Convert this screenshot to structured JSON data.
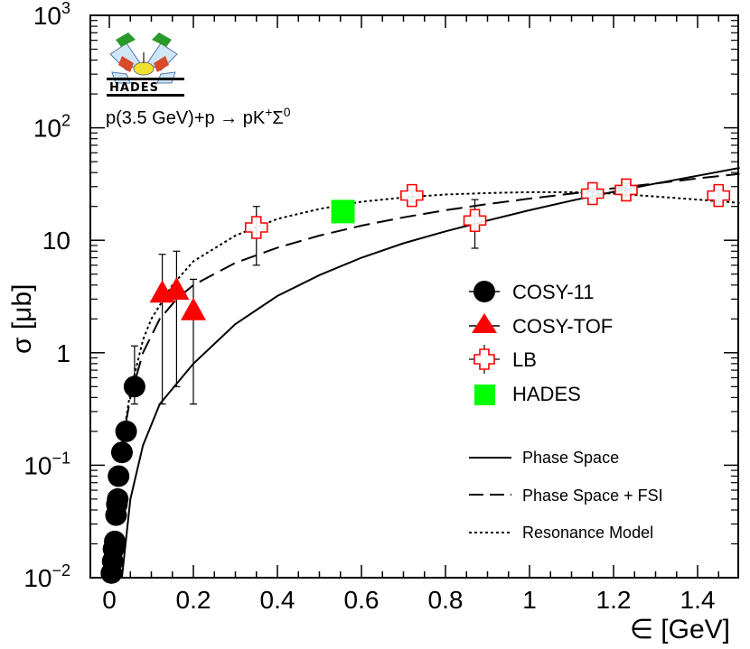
{
  "chart_data": {
    "type": "scatter",
    "title": "",
    "xlabel": "∈ [GeV]",
    "ylabel": "σ [μb]",
    "xlim": [
      -0.02,
      1.5
    ],
    "ylim": [
      0.01,
      1000
    ],
    "yscale": "log",
    "x_ticks": [
      {
        "v": 0,
        "label": "0"
      },
      {
        "v": 0.2,
        "label": "0.2"
      },
      {
        "v": 0.4,
        "label": "0.4"
      },
      {
        "v": 0.6,
        "label": "0.6"
      },
      {
        "v": 0.8,
        "label": "0.8"
      },
      {
        "v": 1.0,
        "label": "1"
      },
      {
        "v": 1.2,
        "label": "1.2"
      },
      {
        "v": 1.4,
        "label": "1.4"
      }
    ],
    "y_ticks": [
      {
        "v": 0.01,
        "base": "10",
        "exp": "−2"
      },
      {
        "v": 0.1,
        "base": "10",
        "exp": "−1"
      },
      {
        "v": 1,
        "base": "1",
        "exp": ""
      },
      {
        "v": 10,
        "base": "10",
        "exp": ""
      },
      {
        "v": 100,
        "base": "10",
        "exp": "2"
      },
      {
        "v": 1000,
        "base": "10",
        "exp": "3"
      }
    ],
    "reaction": {
      "pre": "p(3.5 GeV)+p → pK",
      "sup1": "+",
      "mid": "Σ",
      "sup2": "0"
    },
    "logo_text": "HADES",
    "legend": {
      "markers": [
        {
          "name": "COSY-11",
          "marker": "circle",
          "color": "#000000"
        },
        {
          "name": "COSY-TOF",
          "marker": "triangle",
          "color": "#ff0000"
        },
        {
          "name": "LB",
          "marker": "open-cross",
          "color": "#ff0000"
        },
        {
          "name": "HADES",
          "marker": "square",
          "color": "#00ff00"
        }
      ],
      "lines": [
        {
          "name": "Phase Space",
          "dash": "solid"
        },
        {
          "name": "Phase Space + FSI",
          "dash": "long-dash"
        },
        {
          "name": "Resonance Model",
          "dash": "dotted"
        }
      ]
    },
    "series": [
      {
        "name": "COSY-11",
        "points": [
          {
            "x": 0.005,
            "y": 0.011
          },
          {
            "x": 0.008,
            "y": 0.014
          },
          {
            "x": 0.01,
            "y": 0.018
          },
          {
            "x": 0.013,
            "y": 0.021
          },
          {
            "x": 0.016,
            "y": 0.036
          },
          {
            "x": 0.018,
            "y": 0.045
          },
          {
            "x": 0.02,
            "y": 0.05
          },
          {
            "x": 0.022,
            "y": 0.08
          },
          {
            "x": 0.03,
            "y": 0.13
          },
          {
            "x": 0.04,
            "y": 0.2
          },
          {
            "x": 0.06,
            "y": 0.5,
            "err_lo": 0.35,
            "err_hi": 1.15
          }
        ]
      },
      {
        "name": "COSY-TOF",
        "points": [
          {
            "x": 0.126,
            "y": 3.3,
            "err_lo": 0.35,
            "err_hi": 7.5
          },
          {
            "x": 0.16,
            "y": 3.5,
            "err_lo": 0.5,
            "err_hi": 8.0
          },
          {
            "x": 0.2,
            "y": 2.3,
            "err_lo": 0.35,
            "err_hi": 4.5
          }
        ]
      },
      {
        "name": "LB",
        "points": [
          {
            "x": 0.35,
            "y": 13,
            "err_lo": 6.0,
            "err_hi": 20
          },
          {
            "x": 0.72,
            "y": 25,
            "err_lo": 22,
            "err_hi": 28
          },
          {
            "x": 0.87,
            "y": 15,
            "err_lo": 8.5,
            "err_hi": 23
          },
          {
            "x": 1.15,
            "y": 26,
            "err_lo": 23,
            "err_hi": 29
          },
          {
            "x": 1.23,
            "y": 28,
            "err_lo": 25,
            "err_hi": 32
          },
          {
            "x": 1.45,
            "y": 25,
            "err_lo": 22,
            "err_hi": 28
          }
        ]
      },
      {
        "name": "HADES",
        "points": [
          {
            "x": 0.556,
            "y": 18
          }
        ]
      }
    ],
    "curves": [
      {
        "name": "Phase Space",
        "dash": "solid",
        "points": [
          [
            0.03,
            0.01
          ],
          [
            0.05,
            0.05
          ],
          [
            0.08,
            0.15
          ],
          [
            0.12,
            0.35
          ],
          [
            0.2,
            0.8
          ],
          [
            0.3,
            1.8
          ],
          [
            0.4,
            3.2
          ],
          [
            0.5,
            4.9
          ],
          [
            0.6,
            7.0
          ],
          [
            0.7,
            9.4
          ],
          [
            0.8,
            12.0
          ],
          [
            0.9,
            15.0
          ],
          [
            1.0,
            18.5
          ],
          [
            1.1,
            22.5
          ],
          [
            1.2,
            27.0
          ],
          [
            1.3,
            32.0
          ],
          [
            1.4,
            37.5
          ],
          [
            1.5,
            44.0
          ]
        ]
      },
      {
        "name": "Phase Space + FSI",
        "dash": "long-dash",
        "points": [
          [
            0.03,
            0.15
          ],
          [
            0.05,
            0.4
          ],
          [
            0.08,
            1.0
          ],
          [
            0.12,
            2.0
          ],
          [
            0.16,
            3.0
          ],
          [
            0.2,
            4.0
          ],
          [
            0.3,
            6.3
          ],
          [
            0.4,
            8.6
          ],
          [
            0.5,
            11.0
          ],
          [
            0.6,
            13.5
          ],
          [
            0.7,
            16.0
          ],
          [
            0.8,
            18.5
          ],
          [
            0.9,
            21.0
          ],
          [
            1.0,
            23.5
          ],
          [
            1.1,
            26.0
          ],
          [
            1.2,
            29.0
          ],
          [
            1.3,
            32.0
          ],
          [
            1.4,
            35.5
          ],
          [
            1.5,
            39.0
          ]
        ]
      },
      {
        "name": "Resonance Model",
        "dash": "dotted",
        "points": [
          [
            0.03,
            0.15
          ],
          [
            0.05,
            0.45
          ],
          [
            0.08,
            1.3
          ],
          [
            0.1,
            2.0
          ],
          [
            0.15,
            4.0
          ],
          [
            0.2,
            6.5
          ],
          [
            0.3,
            11.0
          ],
          [
            0.4,
            15.5
          ],
          [
            0.5,
            19.0
          ],
          [
            0.6,
            22.0
          ],
          [
            0.7,
            24.0
          ],
          [
            0.8,
            25.5
          ],
          [
            0.9,
            26.3
          ],
          [
            1.0,
            26.8
          ],
          [
            1.1,
            26.8
          ],
          [
            1.2,
            26.0
          ],
          [
            1.3,
            24.5
          ],
          [
            1.4,
            23.0
          ],
          [
            1.5,
            21.5
          ]
        ]
      }
    ]
  }
}
